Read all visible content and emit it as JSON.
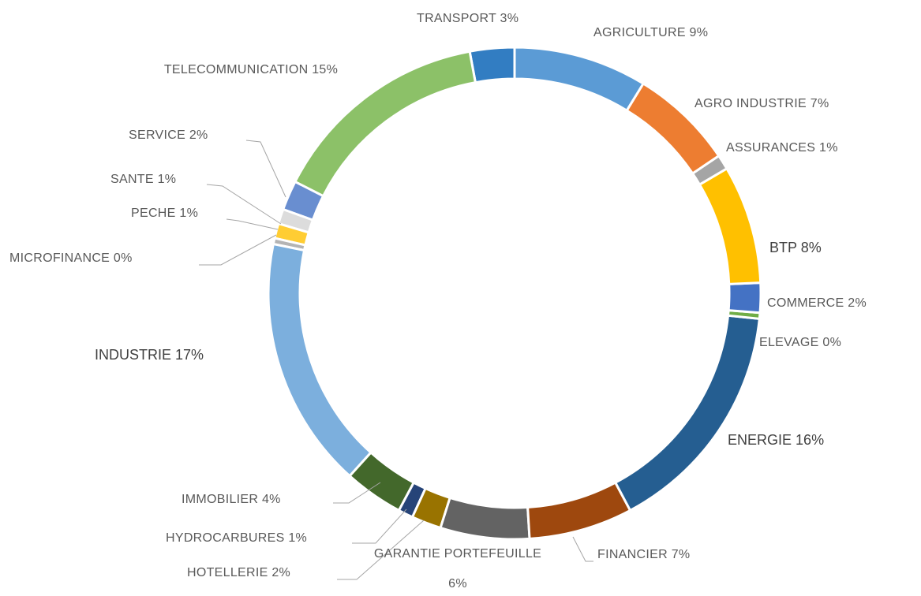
{
  "chart_data": {
    "type": "donut",
    "categories": [
      "AGRICULTURE",
      "AGRO INDUSTRIE",
      "ASSURANCES",
      "BTP",
      "COMMERCE",
      "ELEVAGE",
      "ENERGIE",
      "FINANCIER",
      "GARANTIE PORTEFEUILLE",
      "HOTELLERIE",
      "HYDROCARBURES",
      "IMMOBILIER",
      "INDUSTRIE",
      "MICROFINANCE",
      "PECHE",
      "SANTE",
      "SERVICE",
      "TELECOMMUNICATION",
      "TRANSPORT"
    ],
    "values": [
      9,
      7,
      1,
      8,
      2,
      0.4,
      16,
      7,
      6,
      2,
      1,
      4,
      17,
      0.4,
      1,
      1,
      2,
      15,
      3
    ],
    "value_labels": [
      "9%",
      "7%",
      "1%",
      "8%",
      "2%",
      "0%",
      "16%",
      "7%",
      "6%",
      "2%",
      "1%",
      "4%",
      "17%",
      "0%",
      "1%",
      "1%",
      "2%",
      "15%",
      "3%"
    ],
    "colors": [
      "#5b9bd5",
      "#ed7d31",
      "#a5a5a5",
      "#ffc000",
      "#4472c4",
      "#70ad47",
      "#255e91",
      "#9e480e",
      "#636363",
      "#997300",
      "#264478",
      "#43682b",
      "#7cafdd",
      "#b4b4b4",
      "#ffcd33",
      "#dcdcdc",
      "#698ed0",
      "#8cc168",
      "#327dc2"
    ]
  }
}
